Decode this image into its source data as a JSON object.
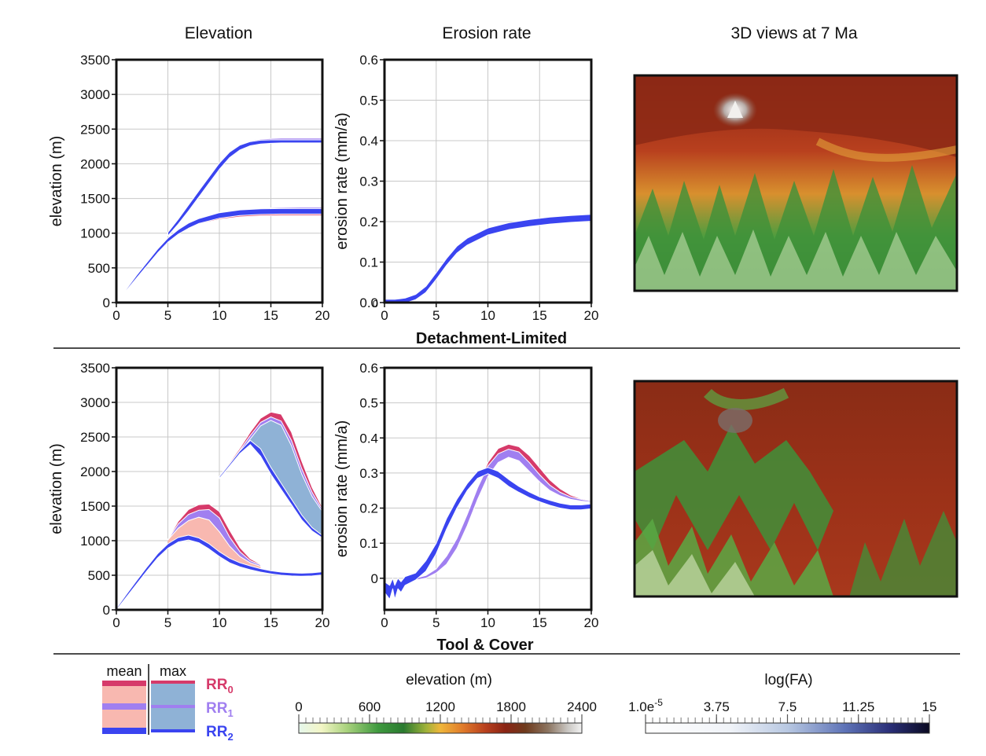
{
  "columns": {
    "elevation": "Elevation",
    "erosion": "Erosion rate",
    "views": "3D views at 7 Ma"
  },
  "rows": {
    "dl": "Detachment-Limited",
    "tc": "Tool & Cover"
  },
  "colors": {
    "rr0": "#d63a6a",
    "rr1": "#a07ff0",
    "rr2": "#3a44f0",
    "mean_fill": "#f8b8b0",
    "max_fill": "#8fb2d6"
  },
  "legend": {
    "mean_label": "mean",
    "max_label": "max",
    "rr_labels": [
      {
        "main": "RR",
        "sub": "0"
      },
      {
        "main": "RR",
        "sub": "1"
      },
      {
        "main": "RR",
        "sub": "2"
      }
    ]
  },
  "colorbars": {
    "elevation": {
      "title": "elevation (m)",
      "ticks": [
        "0",
        "600",
        "1200",
        "1800",
        "2400"
      ]
    },
    "fa": {
      "title": "log(FA)",
      "ticks": [
        {
          "main": "1.0e",
          "sup": "-5"
        },
        {
          "main": "3.75",
          "sup": ""
        },
        {
          "main": "7.5",
          "sup": ""
        },
        {
          "main": "11.25",
          "sup": ""
        },
        {
          "main": "15",
          "sup": ""
        }
      ]
    }
  },
  "chart_data": [
    {
      "id": "dl-elevation",
      "type": "area",
      "ylabel": "elevation (m)",
      "xticks": [
        "0",
        "5",
        "10",
        "15",
        "20"
      ],
      "yticks": [
        "0",
        "500",
        "1000",
        "1500",
        "2000",
        "2500",
        "3000",
        "3500"
      ],
      "xlim": [
        0,
        20
      ],
      "ylim": [
        0,
        3500
      ],
      "grid": true,
      "series": [
        {
          "name": "RR0 mean",
          "x": [
            0,
            2,
            4,
            5,
            6,
            7,
            8,
            10,
            12,
            14,
            16,
            18,
            20
          ],
          "lower": [
            0,
            370,
            730,
            880,
            990,
            1070,
            1130,
            1200,
            1235,
            1250,
            1255,
            1255,
            1255
          ],
          "upper": [
            0,
            390,
            760,
            920,
            1040,
            1130,
            1190,
            1260,
            1290,
            1305,
            1310,
            1310,
            1310
          ]
        },
        {
          "name": "RR1 mean",
          "x": [
            0,
            2,
            4,
            5,
            6,
            7,
            8,
            10,
            12,
            14,
            16,
            18,
            20
          ],
          "lower": [
            0,
            370,
            730,
            880,
            990,
            1080,
            1150,
            1240,
            1285,
            1305,
            1315,
            1320,
            1320
          ],
          "upper": [
            0,
            390,
            760,
            920,
            1040,
            1140,
            1210,
            1300,
            1340,
            1360,
            1370,
            1375,
            1375
          ]
        },
        {
          "name": "RR2 mean",
          "x": [
            0,
            2,
            4,
            5,
            6,
            7,
            8,
            10,
            12,
            14,
            16,
            18,
            20
          ],
          "lower": [
            0,
            360,
            715,
            870,
            985,
            1070,
            1140,
            1215,
            1255,
            1270,
            1275,
            1275,
            1275
          ],
          "upper": [
            0,
            400,
            770,
            930,
            1050,
            1145,
            1210,
            1295,
            1335,
            1350,
            1355,
            1355,
            1355
          ]
        },
        {
          "name": "RR0 max",
          "x": [
            5,
            6,
            7,
            8,
            9,
            10,
            11,
            12,
            13,
            14,
            15,
            16,
            18,
            20
          ],
          "lower": [
            980,
            1160,
            1360,
            1560,
            1760,
            1960,
            2130,
            2240,
            2300,
            2325,
            2335,
            2340,
            2340,
            2340
          ],
          "upper": [
            990,
            1175,
            1380,
            1585,
            1790,
            1990,
            2160,
            2270,
            2325,
            2350,
            2360,
            2365,
            2365,
            2365
          ]
        },
        {
          "name": "RR1 max",
          "x": [
            5,
            6,
            7,
            8,
            9,
            10,
            11,
            12,
            13,
            14,
            15,
            16,
            18,
            20
          ],
          "lower": [
            980,
            1160,
            1360,
            1560,
            1760,
            1960,
            2130,
            2240,
            2300,
            2325,
            2335,
            2340,
            2340,
            2340
          ],
          "upper": [
            995,
            1180,
            1385,
            1590,
            1795,
            1995,
            2165,
            2275,
            2330,
            2355,
            2365,
            2370,
            2370,
            2370
          ]
        },
        {
          "name": "RR2 max",
          "x": [
            5,
            6,
            7,
            8,
            9,
            10,
            11,
            12,
            13,
            14,
            15,
            16,
            18,
            20
          ],
          "lower": [
            960,
            1130,
            1320,
            1520,
            1720,
            1920,
            2090,
            2200,
            2260,
            2285,
            2295,
            2300,
            2300,
            2300
          ],
          "upper": [
            1010,
            1200,
            1405,
            1610,
            1810,
            2010,
            2170,
            2270,
            2320,
            2340,
            2345,
            2345,
            2345,
            2345
          ]
        }
      ]
    },
    {
      "id": "dl-erosion",
      "type": "area",
      "ylabel": "erosion rate (mm/a)",
      "xticks": [
        "0",
        "5",
        "10",
        "15",
        "20"
      ],
      "yticks": [
        "0.0",
        "0.1",
        "0.2",
        "0.3",
        "0.4",
        "0.5",
        "0.6"
      ],
      "ybottom_label": "0",
      "xlim": [
        0,
        20
      ],
      "ylim": [
        0,
        0.6
      ],
      "grid": true,
      "series": [
        {
          "name": "RR0",
          "x": [
            0,
            1,
            2,
            3,
            4,
            5,
            6,
            7,
            8,
            10,
            12,
            14,
            16,
            18,
            20
          ],
          "lower": [
            0.0,
            0.0,
            0.002,
            0.01,
            0.028,
            0.06,
            0.095,
            0.125,
            0.145,
            0.17,
            0.182,
            0.19,
            0.196,
            0.2,
            0.203
          ],
          "upper": [
            0.003,
            0.004,
            0.007,
            0.016,
            0.035,
            0.068,
            0.103,
            0.133,
            0.153,
            0.178,
            0.19,
            0.198,
            0.204,
            0.208,
            0.211
          ]
        },
        {
          "name": "RR1",
          "x": [
            0,
            1,
            2,
            3,
            4,
            5,
            6,
            7,
            8,
            10,
            12,
            14,
            16,
            18,
            20
          ],
          "lower": [
            0.0,
            0.0,
            0.002,
            0.01,
            0.028,
            0.06,
            0.095,
            0.125,
            0.145,
            0.17,
            0.182,
            0.19,
            0.196,
            0.2,
            0.203
          ],
          "upper": [
            0.004,
            0.005,
            0.008,
            0.017,
            0.036,
            0.07,
            0.105,
            0.135,
            0.156,
            0.181,
            0.194,
            0.202,
            0.208,
            0.212,
            0.215
          ]
        },
        {
          "name": "RR2",
          "x": [
            0,
            1,
            2,
            3,
            4,
            5,
            6,
            7,
            8,
            10,
            12,
            14,
            16,
            18,
            20
          ],
          "lower": [
            -0.003,
            -0.003,
            -0.001,
            0.007,
            0.025,
            0.057,
            0.092,
            0.122,
            0.142,
            0.167,
            0.18,
            0.188,
            0.194,
            0.198,
            0.201
          ],
          "upper": [
            0.008,
            0.008,
            0.011,
            0.02,
            0.04,
            0.074,
            0.109,
            0.139,
            0.159,
            0.184,
            0.197,
            0.205,
            0.211,
            0.215,
            0.218
          ]
        }
      ]
    },
    {
      "id": "tc-elevation",
      "type": "area",
      "ylabel": "elevation (m)",
      "xticks": [
        "0",
        "5",
        "10",
        "15",
        "20"
      ],
      "yticks": [
        "0",
        "500",
        "1000",
        "1500",
        "2000",
        "2500",
        "3000",
        "3500"
      ],
      "xlim": [
        0,
        20
      ],
      "ylim": [
        0,
        3500
      ],
      "grid": true,
      "series": [
        {
          "name": "RR0 mean",
          "x": [
            5,
            6,
            7,
            8,
            9,
            10,
            11,
            12,
            13,
            14
          ],
          "lower": [
            1010,
            1180,
            1300,
            1340,
            1300,
            1130,
            930,
            780,
            690,
            640
          ],
          "upper": [
            1020,
            1280,
            1450,
            1520,
            1530,
            1420,
            1150,
            900,
            740,
            660
          ]
        },
        {
          "name": "RR1 mean",
          "x": [
            5,
            6,
            7,
            8,
            9,
            10,
            11,
            12,
            13,
            14
          ],
          "lower": [
            1010,
            1180,
            1290,
            1340,
            1300,
            1130,
            920,
            770,
            680,
            630
          ],
          "upper": [
            1015,
            1240,
            1380,
            1440,
            1450,
            1330,
            1050,
            840,
            710,
            650
          ]
        },
        {
          "name": "RR2 mean",
          "x": [
            0,
            1,
            2,
            3,
            4,
            5,
            6,
            7,
            8,
            9,
            10,
            11,
            12,
            13,
            14,
            15,
            16,
            17,
            18,
            19,
            20
          ],
          "lower": [
            0,
            190,
            380,
            570,
            750,
            890,
            980,
            1010,
            970,
            880,
            770,
            680,
            620,
            580,
            545,
            520,
            500,
            490,
            485,
            490,
            505
          ],
          "upper": [
            20,
            230,
            430,
            625,
            810,
            955,
            1045,
            1080,
            1040,
            955,
            840,
            745,
            680,
            635,
            595,
            565,
            545,
            535,
            530,
            535,
            550
          ]
        },
        {
          "name": "RR0 max",
          "x": [
            10,
            11,
            12,
            13,
            14,
            15,
            16,
            17,
            18,
            19,
            20
          ],
          "lower": [
            1900,
            2080,
            2270,
            2480,
            2680,
            2760,
            2690,
            2390,
            1980,
            1660,
            1430
          ],
          "upper": [
            1930,
            2130,
            2340,
            2570,
            2770,
            2860,
            2830,
            2570,
            2150,
            1770,
            1480
          ]
        },
        {
          "name": "RR1 max",
          "x": [
            10,
            11,
            12,
            13,
            14,
            15,
            16,
            17,
            18,
            19,
            20
          ],
          "lower": [
            1900,
            2080,
            2270,
            2470,
            2660,
            2740,
            2670,
            2370,
            1960,
            1640,
            1420
          ],
          "upper": [
            1915,
            2110,
            2310,
            2520,
            2710,
            2790,
            2730,
            2450,
            2040,
            1700,
            1450
          ]
        },
        {
          "name": "RR2 max",
          "x": [
            10,
            11,
            12,
            13,
            14,
            15,
            16,
            17,
            18,
            19,
            20
          ],
          "lower": [
            1900,
            2080,
            2260,
            2390,
            2220,
            1960,
            1740,
            1520,
            1300,
            1140,
            1040
          ],
          "upper": [
            1925,
            2110,
            2300,
            2450,
            2330,
            2060,
            1830,
            1600,
            1370,
            1190,
            1075
          ]
        }
      ]
    },
    {
      "id": "tc-erosion",
      "type": "area",
      "ylabel": "erosion rate (mm/a)",
      "xticks": [
        "0",
        "5",
        "10",
        "15",
        "20"
      ],
      "yticks": [
        "0",
        "0.1",
        "0.2",
        "0.3",
        "0.4",
        "0.5",
        "0.6"
      ],
      "xlim": [
        0,
        20
      ],
      "ylim": [
        -0.09,
        0.6
      ],
      "grid": true,
      "series": [
        {
          "name": "RR0",
          "x": [
            2,
            3,
            4,
            5,
            6,
            7,
            8,
            9,
            10,
            11,
            12,
            13,
            14,
            15,
            16,
            17,
            18,
            19,
            20
          ],
          "lower": [
            -0.005,
            -0.005,
            0.0,
            0.015,
            0.04,
            0.085,
            0.15,
            0.23,
            0.3,
            0.34,
            0.355,
            0.35,
            0.325,
            0.295,
            0.265,
            0.245,
            0.23,
            0.222,
            0.218
          ],
          "upper": [
            0.0,
            0.0,
            0.008,
            0.025,
            0.06,
            0.11,
            0.18,
            0.26,
            0.33,
            0.37,
            0.382,
            0.375,
            0.35,
            0.315,
            0.28,
            0.255,
            0.237,
            0.227,
            0.222
          ]
        },
        {
          "name": "RR1",
          "x": [
            2,
            3,
            4,
            5,
            6,
            7,
            8,
            9,
            10,
            11,
            12,
            13,
            14,
            15,
            16,
            17,
            18,
            19,
            20
          ],
          "lower": [
            -0.005,
            -0.005,
            0.0,
            0.015,
            0.04,
            0.085,
            0.15,
            0.225,
            0.29,
            0.33,
            0.345,
            0.335,
            0.305,
            0.275,
            0.25,
            0.235,
            0.225,
            0.22,
            0.217
          ],
          "upper": [
            0.0,
            0.0,
            0.008,
            0.027,
            0.063,
            0.113,
            0.182,
            0.258,
            0.32,
            0.355,
            0.368,
            0.36,
            0.33,
            0.295,
            0.265,
            0.245,
            0.232,
            0.225,
            0.22
          ]
        },
        {
          "name": "RR2",
          "x": [
            0,
            0.5,
            0.8,
            1.0,
            1.3,
            1.6,
            2,
            3,
            4,
            5,
            6,
            7,
            8,
            9,
            10,
            11,
            12,
            13,
            14,
            15,
            16,
            17,
            18,
            19,
            20
          ],
          "lower": [
            -0.04,
            -0.06,
            -0.03,
            -0.06,
            -0.03,
            -0.04,
            -0.02,
            -0.005,
            0.02,
            0.07,
            0.14,
            0.2,
            0.25,
            0.285,
            0.298,
            0.285,
            0.262,
            0.245,
            0.23,
            0.218,
            0.208,
            0.2,
            0.195,
            0.195,
            0.198
          ],
          "upper": [
            -0.01,
            -0.02,
            0.0,
            -0.02,
            0.0,
            -0.01,
            0.005,
            0.015,
            0.05,
            0.1,
            0.17,
            0.225,
            0.27,
            0.305,
            0.316,
            0.305,
            0.282,
            0.262,
            0.246,
            0.232,
            0.222,
            0.214,
            0.209,
            0.209,
            0.212
          ]
        }
      ]
    }
  ]
}
